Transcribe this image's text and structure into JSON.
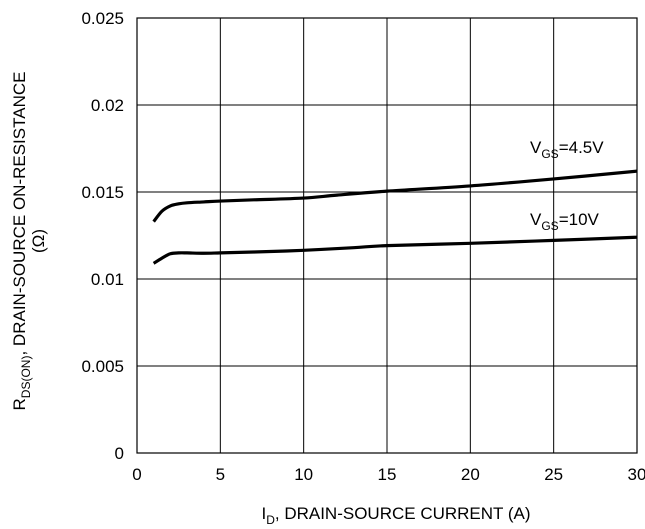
{
  "chart_data": {
    "type": "line",
    "xlabel": {
      "main": "I",
      "sub": "D",
      "rest": ", DRAIN-SOURCE CURRENT (A)"
    },
    "ylabel": {
      "main": "R",
      "sub": "DS(ON)",
      "rest": ", DRAIN-SOURCE ON-RESISTANCE",
      "line2": "(Ω)"
    },
    "xlim": [
      0,
      30
    ],
    "ylim": [
      0,
      0.025
    ],
    "xticks": [
      "0",
      "5",
      "10",
      "15",
      "20",
      "25",
      "30"
    ],
    "yticks": [
      "0",
      "0.005",
      "0.01",
      "0.015",
      "0.02",
      "0.025"
    ],
    "grid": true,
    "series": [
      {
        "name": {
          "main": "V",
          "sub": "GS",
          "rest": "=4.5V"
        },
        "x": [
          1,
          1.5,
          2,
          2.5,
          3,
          4,
          5,
          7,
          10,
          12,
          15,
          20,
          25,
          30
        ],
        "y": [
          0.0133,
          0.0139,
          0.0142,
          0.01432,
          0.01438,
          0.01443,
          0.01448,
          0.01455,
          0.01465,
          0.01482,
          0.01505,
          0.01535,
          0.01575,
          0.0162
        ]
      },
      {
        "name": {
          "main": "V",
          "sub": "GS",
          "rest": "=10V"
        },
        "x": [
          1,
          1.5,
          2,
          2.5,
          3,
          4,
          5,
          7,
          10,
          13,
          15,
          20,
          25,
          30
        ],
        "y": [
          0.0109,
          0.0112,
          0.01145,
          0.0115,
          0.0115,
          0.01148,
          0.0115,
          0.01155,
          0.01165,
          0.0118,
          0.01192,
          0.01205,
          0.01222,
          0.0124
        ]
      }
    ]
  }
}
